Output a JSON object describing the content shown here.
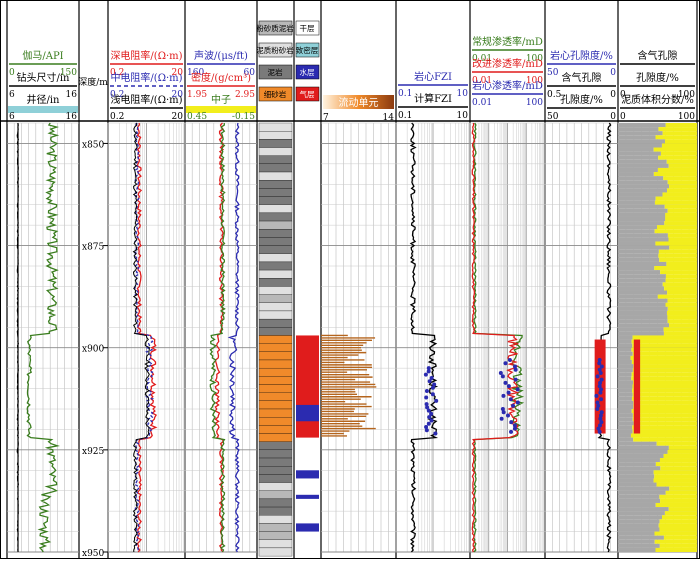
{
  "tracks": {
    "t1": {
      "rows": [
        {
          "name": "伽马/API",
          "color": "#3a7d1e",
          "min": "0",
          "max": "150",
          "kind": "line"
        },
        {
          "name": "钻头尺寸/in",
          "color": "#000000",
          "min": "6",
          "max": "16",
          "kind": "line"
        },
        {
          "name": "井径/in",
          "color": "#000000",
          "min": "6",
          "max": "16",
          "kind": "band",
          "fill": "#8fd0d8"
        }
      ]
    },
    "t2": {
      "header": "深度/m"
    },
    "t3": {
      "rows": [
        {
          "name": "深电阻率/(Ω·m)",
          "color": "#e01c1c",
          "min": "0.2",
          "max": "20",
          "kind": "line"
        },
        {
          "name": "中电阻率/(Ω·m)",
          "color": "#2b2bb0",
          "min": "0.2",
          "max": "20",
          "kind": "dash"
        },
        {
          "name": "浅电阻率/(Ω·m)",
          "color": "#000000",
          "min": "0.2",
          "max": "20",
          "kind": "line"
        }
      ]
    },
    "t4": {
      "rows": [
        {
          "name": "声波/(μs/ft)",
          "color": "#2b2bb0",
          "min": "160",
          "max": "60",
          "kind": "line"
        },
        {
          "name": "密度/(g/cm³)",
          "color": "#e01c1c",
          "min": "1.95",
          "max": "2.95",
          "kind": "line"
        },
        {
          "name": "中子",
          "color": "#3a7d1e",
          "min": "0.45",
          "max": "-0.15",
          "kind": "band",
          "fill": "#f2ee1c"
        }
      ]
    },
    "t5": {
      "labels": [
        "粉砂质泥岩",
        "泥质粉砂岩",
        "泥岩",
        "细砂岩"
      ]
    },
    "t6": {
      "labels": [
        "干层",
        "致密层",
        "水层",
        "气层"
      ]
    },
    "t7": {
      "header": "流动单元",
      "min": "7",
      "max": "14"
    },
    "t8": {
      "rows": [
        {
          "name": "岩心FZI",
          "color": "#2b2bb0",
          "min": "0.1",
          "max": "10"
        },
        {
          "name": "计算FZI",
          "color": "#000000",
          "min": "0.1",
          "max": "10"
        }
      ]
    },
    "t9": {
      "rows": [
        {
          "name": "常规渗透率/mD",
          "color": "#3a7d1e",
          "min": "0.01",
          "max": "100"
        },
        {
          "name": "改进渗透率/mD",
          "color": "#e01c1c",
          "min": "0.01",
          "max": "100"
        },
        {
          "name": "岩心渗透率/mD",
          "color": "#2b2bb0",
          "min": "0.01",
          "max": "100"
        }
      ]
    },
    "t10": {
      "rows": [
        {
          "name": "岩心孔隙度/%",
          "color": "#2b2bb0",
          "min": "50",
          "max": "0"
        },
        {
          "name": "含气孔隙",
          "color": "#000000",
          "min": "0.5",
          "max": "0"
        },
        {
          "name": "孔隙度/%",
          "color": "#000000",
          "min": "50",
          "max": "0"
        }
      ]
    },
    "t11": {
      "rows": [
        {
          "name": "含气孔隙",
          "color": "#000000",
          "min": "",
          "max": ""
        },
        {
          "name": "孔隙度/%",
          "color": "#000000",
          "min": "0",
          "max": "100"
        },
        {
          "name": "泥质体积分数/%",
          "color": "#000000",
          "min": "0",
          "max": "100"
        }
      ]
    }
  },
  "depth_labels": [
    "x850",
    "x875",
    "x900",
    "x925",
    "x950"
  ],
  "chart_data": {
    "type": "line",
    "title": "",
    "depth_range": [
      "x845",
      "x950"
    ],
    "depth_ticks": [
      "x850",
      "x875",
      "x900",
      "x925",
      "x950"
    ],
    "zones": {
      "gas_layer": [
        "x897",
        "x922"
      ],
      "tight_layer": [
        "x922",
        "x945"
      ]
    },
    "series_description": {
      "gamma_api": "≈85-95 API above x897, drops to ≈40 API in the x897-x922 sand, back to ≈90 API below",
      "resistivity": "deep/medium/shallow ≈1.5-3 Ω·m, rising to ≈4-8 Ω·m in the gas sand",
      "permeability": "0.01-100 mD track; in the sand ≈1-50 mD",
      "porosity": "≈5-15 % above, ≈10-20 % in sand"
    }
  },
  "colors": {
    "red": "#e01c1c",
    "blue": "#2b2bb0",
    "green": "#3a7d1e",
    "orange": "#f08a2a",
    "brown": "#b5651d",
    "yellow": "#f2ee1c",
    "cyan": "#8fd0d8",
    "grey": "#a7a7a7"
  }
}
